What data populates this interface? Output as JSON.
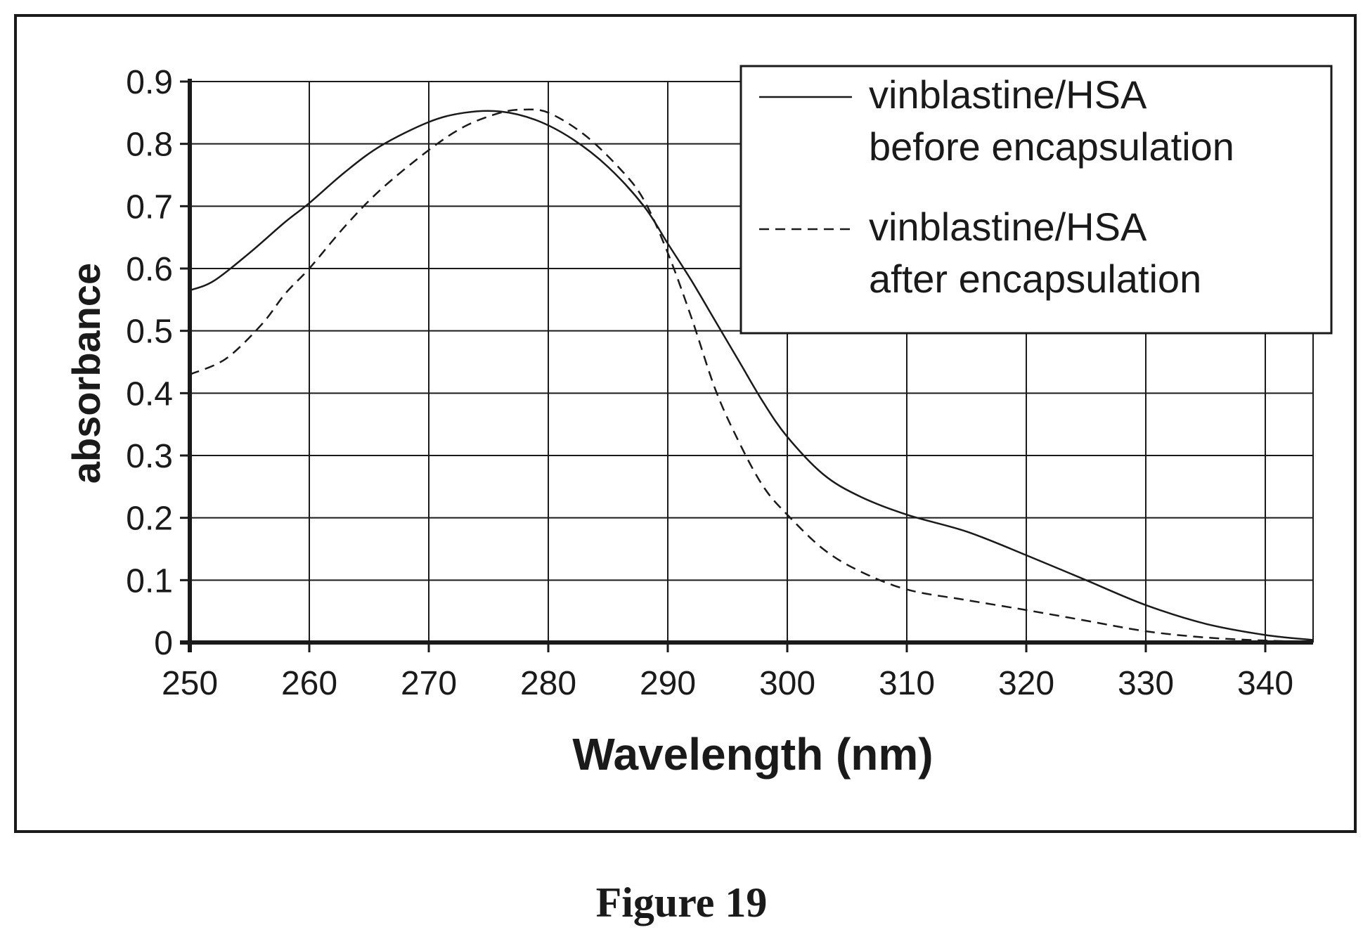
{
  "figure_caption": "Figure 19",
  "chart_data": {
    "type": "line",
    "title": "",
    "xlabel": "Wavelength (nm)",
    "ylabel": "absorbance",
    "xlim": [
      250,
      344
    ],
    "ylim": [
      0,
      0.9
    ],
    "xticks": [
      250,
      260,
      270,
      280,
      290,
      300,
      310,
      320,
      330,
      340
    ],
    "yticks": [
      0,
      0.1,
      0.2,
      0.3,
      0.4,
      0.5,
      0.6,
      0.7,
      0.8,
      0.9
    ],
    "xtick_labels": [
      "250",
      "260",
      "270",
      "280",
      "290",
      "300",
      "310",
      "320",
      "330",
      "340"
    ],
    "ytick_labels": [
      "0",
      "0.1",
      "0.2",
      "0.3",
      "0.4",
      "0.5",
      "0.6",
      "0.7",
      "0.8",
      "0.9"
    ],
    "grid": true,
    "legend_position": "top-right",
    "series": [
      {
        "name": "vinblastine/HSA before encapsulation",
        "legend_lines": [
          "vinblastine/HSA",
          "before encapsulation"
        ],
        "style": "solid",
        "color": "#1a1a1a",
        "x": [
          250,
          252,
          255,
          258,
          260,
          263,
          266,
          270,
          273,
          276,
          279,
          282,
          285,
          288,
          290,
          292,
          294,
          296,
          298,
          300,
          303,
          306,
          310,
          315,
          320,
          325,
          330,
          335,
          340,
          344
        ],
        "y": [
          0.565,
          0.58,
          0.625,
          0.675,
          0.705,
          0.755,
          0.797,
          0.835,
          0.85,
          0.852,
          0.838,
          0.808,
          0.763,
          0.7,
          0.64,
          0.58,
          0.515,
          0.45,
          0.385,
          0.33,
          0.27,
          0.235,
          0.205,
          0.178,
          0.14,
          0.1,
          0.06,
          0.03,
          0.012,
          0.004
        ]
      },
      {
        "name": "vinblastine/HSA after encapsulation",
        "legend_lines": [
          "vinblastine/HSA",
          "after encapsulation"
        ],
        "style": "dashed",
        "color": "#1a1a1a",
        "x": [
          250,
          253,
          256,
          258,
          260,
          263,
          266,
          270,
          273,
          276,
          278,
          280,
          283,
          286,
          288,
          290,
          292,
          294,
          296,
          298,
          300,
          303,
          306,
          310,
          315,
          320,
          325,
          330,
          335,
          340,
          344
        ],
        "y": [
          0.43,
          0.455,
          0.51,
          0.56,
          0.6,
          0.668,
          0.727,
          0.79,
          0.828,
          0.85,
          0.855,
          0.85,
          0.815,
          0.76,
          0.71,
          0.625,
          0.52,
          0.405,
          0.32,
          0.25,
          0.205,
          0.15,
          0.115,
          0.085,
          0.068,
          0.052,
          0.035,
          0.018,
          0.008,
          0.003,
          0.001
        ]
      }
    ]
  }
}
